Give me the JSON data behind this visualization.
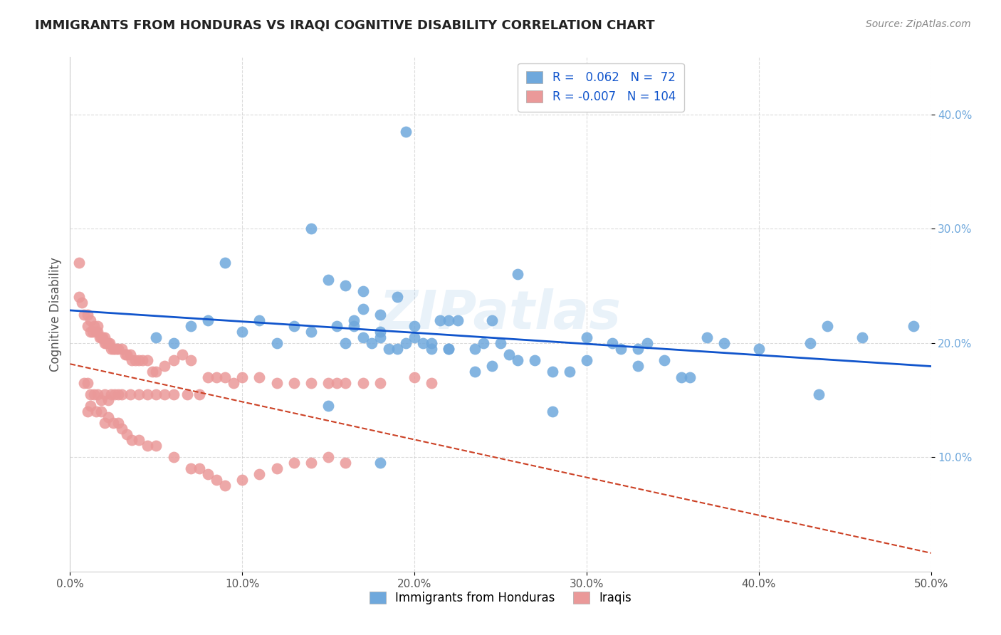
{
  "title": "IMMIGRANTS FROM HONDURAS VS IRAQI COGNITIVE DISABILITY CORRELATION CHART",
  "source": "Source: ZipAtlas.com",
  "ylabel": "Cognitive Disability",
  "xlim": [
    0.0,
    0.5
  ],
  "ylim": [
    0.0,
    0.45
  ],
  "xtick_vals": [
    0.0,
    0.1,
    0.2,
    0.3,
    0.4,
    0.5
  ],
  "ytick_vals": [
    0.1,
    0.2,
    0.3,
    0.4
  ],
  "ytick_labels": [
    "10.0%",
    "20.0%",
    "30.0%",
    "40.0%"
  ],
  "xtick_labels": [
    "0.0%",
    "10.0%",
    "20.0%",
    "30.0%",
    "40.0%",
    "50.0%"
  ],
  "blue_R": 0.062,
  "blue_N": 72,
  "pink_R": -0.007,
  "pink_N": 104,
  "blue_color": "#6fa8dc",
  "pink_color": "#ea9999",
  "blue_line_color": "#1155cc",
  "pink_line_color": "#cc4125",
  "watermark": "ZIPatlas",
  "legend_entries": [
    "Immigrants from Honduras",
    "Iraqis"
  ],
  "blue_x": [
    0.195,
    0.09,
    0.14,
    0.15,
    0.16,
    0.17,
    0.165,
    0.17,
    0.18,
    0.18,
    0.19,
    0.2,
    0.21,
    0.22,
    0.22,
    0.235,
    0.24,
    0.245,
    0.255,
    0.26,
    0.27,
    0.28,
    0.29,
    0.3,
    0.315,
    0.32,
    0.33,
    0.345,
    0.355,
    0.36,
    0.05,
    0.06,
    0.07,
    0.08,
    0.1,
    0.11,
    0.12,
    0.13,
    0.14,
    0.155,
    0.16,
    0.165,
    0.17,
    0.175,
    0.18,
    0.185,
    0.19,
    0.195,
    0.2,
    0.205,
    0.21,
    0.215,
    0.22,
    0.225,
    0.235,
    0.245,
    0.25,
    0.26,
    0.28,
    0.3,
    0.33,
    0.335,
    0.37,
    0.38,
    0.4,
    0.43,
    0.435,
    0.44,
    0.46,
    0.49,
    0.15,
    0.18
  ],
  "blue_y": [
    0.385,
    0.27,
    0.3,
    0.255,
    0.25,
    0.245,
    0.22,
    0.23,
    0.225,
    0.21,
    0.24,
    0.205,
    0.2,
    0.195,
    0.22,
    0.195,
    0.2,
    0.22,
    0.19,
    0.26,
    0.185,
    0.175,
    0.175,
    0.185,
    0.2,
    0.195,
    0.18,
    0.185,
    0.17,
    0.17,
    0.205,
    0.2,
    0.215,
    0.22,
    0.21,
    0.22,
    0.2,
    0.215,
    0.21,
    0.215,
    0.2,
    0.215,
    0.205,
    0.2,
    0.205,
    0.195,
    0.195,
    0.2,
    0.215,
    0.2,
    0.195,
    0.22,
    0.195,
    0.22,
    0.175,
    0.18,
    0.2,
    0.185,
    0.14,
    0.205,
    0.195,
    0.2,
    0.205,
    0.2,
    0.195,
    0.2,
    0.155,
    0.215,
    0.205,
    0.215,
    0.145,
    0.095
  ],
  "pink_x": [
    0.005,
    0.005,
    0.007,
    0.008,
    0.01,
    0.01,
    0.012,
    0.012,
    0.013,
    0.014,
    0.015,
    0.016,
    0.016,
    0.017,
    0.018,
    0.019,
    0.02,
    0.02,
    0.021,
    0.022,
    0.023,
    0.024,
    0.025,
    0.026,
    0.027,
    0.028,
    0.03,
    0.032,
    0.033,
    0.035,
    0.036,
    0.038,
    0.04,
    0.042,
    0.045,
    0.048,
    0.05,
    0.055,
    0.06,
    0.065,
    0.07,
    0.01,
    0.012,
    0.015,
    0.018,
    0.02,
    0.022,
    0.025,
    0.028,
    0.03,
    0.033,
    0.036,
    0.04,
    0.045,
    0.05,
    0.06,
    0.07,
    0.075,
    0.08,
    0.085,
    0.09,
    0.1,
    0.11,
    0.12,
    0.13,
    0.14,
    0.15,
    0.16,
    0.008,
    0.01,
    0.012,
    0.014,
    0.016,
    0.018,
    0.02,
    0.022,
    0.024,
    0.026,
    0.028,
    0.03,
    0.035,
    0.04,
    0.045,
    0.05,
    0.055,
    0.06,
    0.068,
    0.075,
    0.08,
    0.085,
    0.09,
    0.095,
    0.1,
    0.11,
    0.12,
    0.13,
    0.14,
    0.15,
    0.155,
    0.16,
    0.17,
    0.18,
    0.2,
    0.21
  ],
  "pink_y": [
    0.27,
    0.24,
    0.235,
    0.225,
    0.225,
    0.215,
    0.22,
    0.21,
    0.21,
    0.215,
    0.21,
    0.21,
    0.215,
    0.205,
    0.205,
    0.205,
    0.2,
    0.205,
    0.2,
    0.2,
    0.2,
    0.195,
    0.195,
    0.195,
    0.195,
    0.195,
    0.195,
    0.19,
    0.19,
    0.19,
    0.185,
    0.185,
    0.185,
    0.185,
    0.185,
    0.175,
    0.175,
    0.18,
    0.185,
    0.19,
    0.185,
    0.14,
    0.145,
    0.14,
    0.14,
    0.13,
    0.135,
    0.13,
    0.13,
    0.125,
    0.12,
    0.115,
    0.115,
    0.11,
    0.11,
    0.1,
    0.09,
    0.09,
    0.085,
    0.08,
    0.075,
    0.08,
    0.085,
    0.09,
    0.095,
    0.095,
    0.1,
    0.095,
    0.165,
    0.165,
    0.155,
    0.155,
    0.155,
    0.15,
    0.155,
    0.15,
    0.155,
    0.155,
    0.155,
    0.155,
    0.155,
    0.155,
    0.155,
    0.155,
    0.155,
    0.155,
    0.155,
    0.155,
    0.17,
    0.17,
    0.17,
    0.165,
    0.17,
    0.17,
    0.165,
    0.165,
    0.165,
    0.165,
    0.165,
    0.165,
    0.165,
    0.165,
    0.17,
    0.165
  ]
}
